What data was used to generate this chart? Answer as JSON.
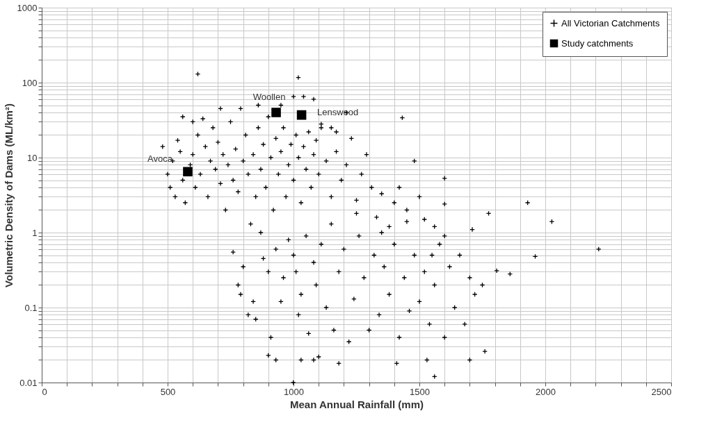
{
  "chart_data": {
    "type": "scatter",
    "xlabel": "Mean Annual Rainfall (mm)",
    "ylabel": "Volumetric Density of Dams (ML/km²)",
    "log": "y",
    "grid": true,
    "legend": "top right",
    "xlim": [
      0,
      2500
    ],
    "ylim": [
      0.01,
      1000
    ],
    "xticks": [
      0,
      {
        "value": 100,
        "label": null
      },
      {
        "value": 200,
        "label": null
      },
      {
        "value": 300,
        "label": null
      },
      {
        "value": 400,
        "label": null
      },
      500,
      {
        "value": 600,
        "label": null
      },
      {
        "value": 700,
        "label": null
      },
      {
        "value": 800,
        "label": null
      },
      {
        "value": 900,
        "label": null
      },
      1000,
      {
        "value": 1100,
        "label": null
      },
      {
        "value": 1200,
        "label": null
      },
      {
        "value": 1300,
        "label": null
      },
      {
        "value": 1400,
        "label": null
      },
      1500,
      {
        "value": 1600,
        "label": null
      },
      {
        "value": 1700,
        "label": null
      },
      {
        "value": 1800,
        "label": null
      },
      {
        "value": 1900,
        "label": null
      },
      2000,
      {
        "value": 2100,
        "label": null
      },
      {
        "value": 2200,
        "label": null
      },
      {
        "value": 2300,
        "label": null
      },
      {
        "value": 2400,
        "label": null
      },
      2500
    ],
    "yticks": [
      0.01,
      {
        "value": 0.02,
        "label": null
      },
      {
        "value": 0.03,
        "label": null
      },
      {
        "value": 0.04,
        "label": null
      },
      {
        "value": 0.05,
        "label": null
      },
      {
        "value": 0.06,
        "label": null
      },
      {
        "value": 0.07,
        "label": null
      },
      {
        "value": 0.08,
        "label": null
      },
      {
        "value": 0.09,
        "label": null
      },
      0.1,
      {
        "value": 0.2,
        "label": null
      },
      {
        "value": 0.3,
        "label": null
      },
      {
        "value": 0.4,
        "label": null
      },
      {
        "value": 0.5,
        "label": null
      },
      {
        "value": 0.6,
        "label": null
      },
      {
        "value": 0.7,
        "label": null
      },
      {
        "value": 0.8,
        "label": null
      },
      {
        "value": 0.9,
        "label": null
      },
      1,
      {
        "value": 2,
        "label": null
      },
      {
        "value": 3,
        "label": null
      },
      {
        "value": 4,
        "label": null
      },
      {
        "value": 5,
        "label": null
      },
      {
        "value": 6,
        "label": null
      },
      {
        "value": 7,
        "label": null
      },
      {
        "value": 8,
        "label": null
      },
      {
        "value": 9,
        "label": null
      },
      10,
      {
        "value": 20,
        "label": null
      },
      {
        "value": 30,
        "label": null
      },
      {
        "value": 40,
        "label": null
      },
      {
        "value": 50,
        "label": null
      },
      {
        "value": 60,
        "label": null
      },
      {
        "value": 70,
        "label": null
      },
      {
        "value": 80,
        "label": null
      },
      {
        "value": 90,
        "label": null
      },
      100,
      {
        "value": 200,
        "label": null
      },
      {
        "value": 300,
        "label": null
      },
      {
        "value": 400,
        "label": null
      },
      {
        "value": 500,
        "label": null
      },
      {
        "value": 600,
        "label": null
      },
      {
        "value": 700,
        "label": null
      },
      {
        "value": 800,
        "label": null
      },
      {
        "value": 900,
        "label": null
      },
      1000
    ],
    "series": [
      {
        "name": "All Victorian Catchments",
        "color": "#000000",
        "marker": "cross",
        "x": [
          480,
          500,
          510,
          520,
          530,
          540,
          550,
          560,
          570,
          590,
          600,
          610,
          620,
          630,
          640,
          650,
          660,
          670,
          680,
          690,
          700,
          710,
          720,
          730,
          740,
          750,
          760,
          770,
          780,
          790,
          800,
          810,
          820,
          830,
          840,
          850,
          860,
          870,
          880,
          890,
          900,
          910,
          920,
          930,
          940,
          950,
          960,
          970,
          980,
          990,
          1000,
          1010,
          1020,
          1030,
          1040,
          1050,
          1060,
          1070,
          1080,
          1090,
          1100,
          1110,
          1130,
          1150,
          1170,
          1190,
          1210,
          1230,
          1250,
          1270,
          1290,
          1310,
          1330,
          1350,
          1380,
          1400,
          1420,
          1450,
          1480,
          1500,
          1520,
          1560,
          1600,
          560,
          600,
          710,
          860,
          950,
          1000,
          1040,
          1080,
          1150,
          1210,
          1110,
          1170,
          620,
          1019,
          1432,
          1600,
          1930,
          2026,
          2212,
          1960,
          1807,
          1860,
          1775,
          1710,
          999,
          1560,
          900,
          930,
          1030,
          1080,
          1100,
          1180,
          1410,
          1530,
          1700,
          1760,
          760,
          780,
          790,
          800,
          820,
          840,
          850,
          870,
          880,
          900,
          910,
          930,
          950,
          960,
          980,
          1000,
          1010,
          1020,
          1030,
          1050,
          1060,
          1080,
          1090,
          1110,
          1130,
          1150,
          1160,
          1180,
          1200,
          1220,
          1240,
          1260,
          1280,
          1300,
          1320,
          1340,
          1360,
          1380,
          1400,
          1420,
          1440,
          1460,
          1480,
          1500,
          1520,
          1540,
          1560,
          1580,
          1600,
          1620,
          1640,
          1660,
          1680,
          1700,
          1720,
          1750,
          1600,
          1550,
          1450,
          1350,
          1250
        ],
        "values": [
          14,
          6,
          4,
          9,
          3,
          17,
          12,
          5,
          2.5,
          8,
          11,
          4,
          20,
          6,
          33,
          14,
          3,
          9,
          25,
          7,
          16,
          4.5,
          11,
          2,
          8,
          30,
          5,
          13,
          3.5,
          45,
          9,
          20,
          6,
          1.3,
          11,
          3,
          25,
          7,
          15,
          4,
          35,
          10,
          2,
          18,
          6,
          12,
          25,
          3,
          8,
          15,
          5,
          20,
          10,
          2.5,
          14,
          7,
          22,
          4,
          11,
          17,
          6,
          25,
          9,
          3,
          12,
          5,
          8,
          18,
          2.7,
          6,
          11,
          4,
          1.6,
          3.3,
          1.2,
          2.5,
          4,
          2,
          9,
          3,
          1.5,
          1.2,
          2.4,
          35,
          30,
          45,
          50,
          50,
          65,
          65,
          60,
          25,
          40,
          28,
          22,
          130,
          117,
          34,
          5.3,
          2.5,
          1.4,
          0.6,
          0.48,
          0.31,
          0.28,
          1.8,
          1.1,
          0.01,
          0.012,
          0.023,
          0.02,
          0.02,
          0.02,
          0.022,
          0.018,
          0.018,
          0.02,
          0.02,
          0.026,
          0.55,
          0.2,
          0.15,
          0.35,
          0.08,
          0.12,
          0.07,
          1.0,
          0.45,
          0.3,
          0.04,
          0.6,
          0.12,
          0.25,
          0.8,
          0.5,
          0.3,
          0.08,
          0.15,
          0.9,
          0.045,
          0.4,
          0.2,
          0.7,
          0.1,
          1.3,
          0.05,
          0.3,
          0.6,
          0.035,
          0.13,
          0.9,
          0.25,
          0.05,
          0.5,
          0.08,
          0.35,
          0.15,
          0.7,
          0.04,
          0.25,
          0.09,
          0.5,
          0.12,
          0.3,
          0.06,
          0.2,
          0.7,
          0.04,
          0.35,
          0.1,
          0.5,
          0.06,
          0.25,
          0.15,
          0.2,
          0.9,
          0.5,
          1.4,
          1.0,
          1.8
        ]
      },
      {
        "name": "Study catchments",
        "color": "#000000",
        "marker": "square",
        "x": [
          580,
          931,
          1032
        ],
        "values": [
          6.5,
          40,
          37
        ]
      }
    ],
    "annotations": [
      {
        "text": "Woollen",
        "x": 931,
        "y": 40
      },
      {
        "text": "Lenswood",
        "x": 1032,
        "y": 37
      },
      {
        "text": "Avoca",
        "x": 580,
        "y": 6.5
      }
    ]
  }
}
